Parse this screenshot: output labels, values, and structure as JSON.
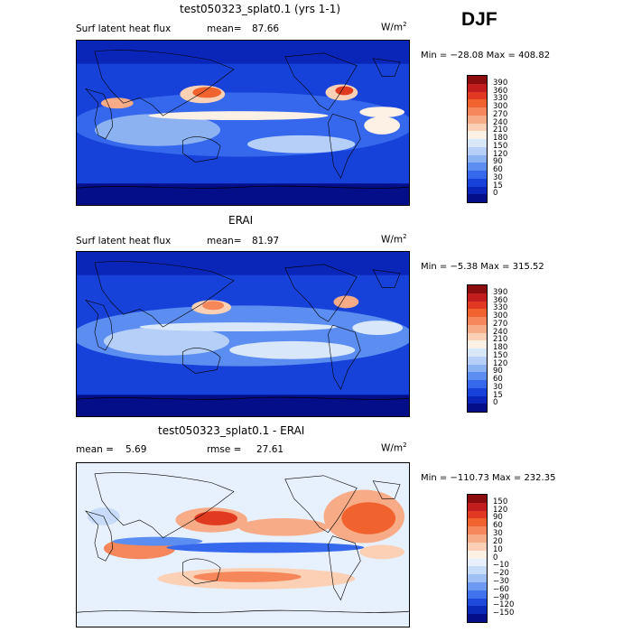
{
  "season": "DJF",
  "panels": [
    {
      "id": "model",
      "title": "test050323_splat0.1 (yrs 1-1)",
      "left_label": "Surf latent heat flux",
      "stat_label": "mean=",
      "stat_value": "87.66",
      "stat2_label": "",
      "stat2_value": "",
      "units": "W/m",
      "units_sup": "2",
      "min_max": "Min = −28.08  Max = 408.82",
      "colorbar_labels": [
        "390",
        "360",
        "330",
        "300",
        "270",
        "240",
        "210",
        "180",
        "150",
        "120",
        "90",
        "60",
        "30",
        "15",
        "0"
      ]
    },
    {
      "id": "obs",
      "title": "ERAI",
      "left_label": "Surf latent heat flux",
      "stat_label": "mean=",
      "stat_value": "81.97",
      "stat2_label": "",
      "stat2_value": "",
      "units": "W/m",
      "units_sup": "2",
      "min_max": "Min =  −5.38  Max = 315.52",
      "colorbar_labels": [
        "390",
        "360",
        "330",
        "300",
        "270",
        "240",
        "210",
        "180",
        "150",
        "120",
        "90",
        "60",
        "30",
        "15",
        "0"
      ]
    },
    {
      "id": "diff",
      "title": "test050323_splat0.1 - ERAI",
      "left_label": "mean =",
      "stat_label": "",
      "stat_value": "5.69",
      "stat2_label": "rmse =",
      "stat2_value": "27.61",
      "units": "W/m",
      "units_sup": "2",
      "min_max": "Min = −110.73  Max = 232.35",
      "colorbar_labels": [
        "150",
        "120",
        "90",
        "60",
        "30",
        "20",
        "10",
        "0",
        "−10",
        "−20",
        "−30",
        "−60",
        "−90",
        "−120",
        "−150"
      ]
    }
  ],
  "colors": {
    "abs_scale": [
      "#8b0c0c",
      "#c11d1d",
      "#e03a20",
      "#f0632e",
      "#f5875a",
      "#f8ab87",
      "#fbd0b4",
      "#fdf0e4",
      "#d9e7fb",
      "#b5cff8",
      "#8cb2f2",
      "#5c8df0",
      "#3568ec",
      "#1742d9",
      "#0a26b8",
      "#030e88"
    ],
    "diff_scale": [
      "#8b0c0c",
      "#c11d1d",
      "#e03a20",
      "#f0632e",
      "#f5875a",
      "#f8ab87",
      "#fbd0b4",
      "#fdf0e4",
      "#e7f0fd",
      "#c8dbf8",
      "#9fc0f5",
      "#6d9af1",
      "#4173ee",
      "#1d4ada",
      "#0a2ab8",
      "#030e88"
    ]
  }
}
